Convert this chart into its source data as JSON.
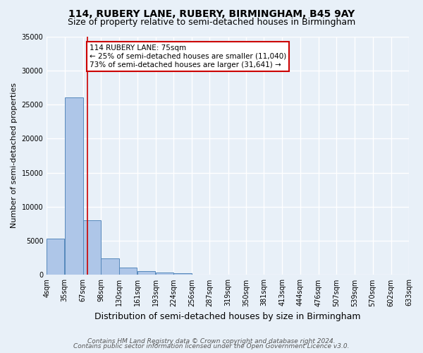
{
  "title1": "114, RUBERY LANE, RUBERY, BIRMINGHAM, B45 9AY",
  "title2": "Size of property relative to semi-detached houses in Birmingham",
  "xlabel": "Distribution of semi-detached houses by size in Birmingham",
  "ylabel": "Number of semi-detached properties",
  "footnote1": "Contains HM Land Registry data © Crown copyright and database right 2024.",
  "footnote2": "Contains public sector information licensed under the Open Government Licence v3.0.",
  "annotation_line1": "114 RUBERY LANE: 75sqm",
  "annotation_line2": "← 25% of semi-detached houses are smaller (11,040)",
  "annotation_line3": "73% of semi-detached houses are larger (31,641) →",
  "property_size": 75,
  "bar_left_edges": [
    4,
    35,
    67,
    98,
    130,
    161,
    193,
    224,
    256,
    287,
    319,
    350,
    381,
    413,
    444,
    476,
    507,
    539,
    570,
    602
  ],
  "bar_widths": [
    31,
    32,
    31,
    32,
    31,
    32,
    31,
    32,
    31,
    32,
    31,
    31,
    32,
    31,
    32,
    31,
    32,
    31,
    32,
    31
  ],
  "bar_heights": [
    5300,
    26000,
    8000,
    2400,
    1100,
    550,
    350,
    300,
    0,
    0,
    0,
    0,
    0,
    0,
    0,
    0,
    0,
    0,
    0,
    0
  ],
  "bar_color": "#aec6e8",
  "bar_edge_color": "#5588bb",
  "vline_color": "#cc0000",
  "vline_x": 75,
  "ylim": [
    0,
    35000
  ],
  "yticks": [
    0,
    5000,
    10000,
    15000,
    20000,
    25000,
    30000,
    35000
  ],
  "x_tick_labels": [
    "4sqm",
    "35sqm",
    "67sqm",
    "98sqm",
    "130sqm",
    "161sqm",
    "193sqm",
    "224sqm",
    "256sqm",
    "287sqm",
    "319sqm",
    "350sqm",
    "381sqm",
    "413sqm",
    "444sqm",
    "476sqm",
    "507sqm",
    "539sqm",
    "570sqm",
    "602sqm",
    "633sqm"
  ],
  "background_color": "#e8f0f8",
  "grid_color": "#ffffff",
  "annotation_box_color": "#ffffff",
  "annotation_box_edge": "#cc0000",
  "title1_fontsize": 10,
  "title2_fontsize": 9,
  "xlabel_fontsize": 9,
  "ylabel_fontsize": 8,
  "tick_fontsize": 7,
  "annotation_fontsize": 7.5,
  "footnote_fontsize": 6.5
}
